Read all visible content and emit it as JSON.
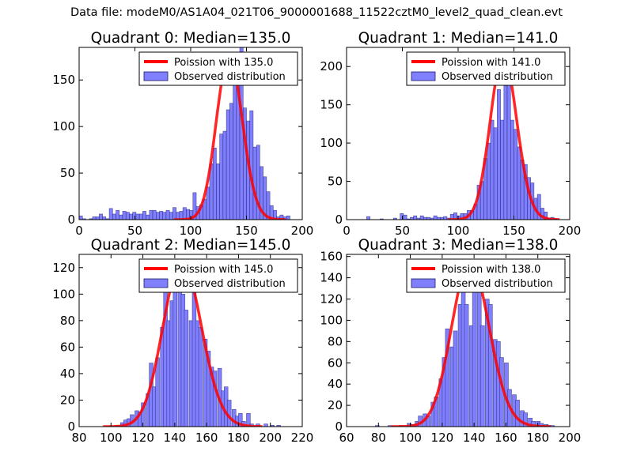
{
  "figure": {
    "suptitle": "Data file: modeM0/AS1A04_021T06_9000001688_11522cztM0_level2_quad_clean.evt"
  },
  "colors": {
    "bar_fill": "#8080ff",
    "bar_edge": "#1a1a66",
    "curve": "#ff0000"
  },
  "chart_data": [
    {
      "type": "bar",
      "title": "Quadrant 0: Median=135.0",
      "xlim": [
        0,
        200
      ],
      "ylim": [
        0,
        185
      ],
      "xticks": [
        0,
        50,
        100,
        150,
        200
      ],
      "yticks": [
        0,
        50,
        100,
        150
      ],
      "legend": {
        "placement": "top-right",
        "curve_label": "Poission with 135.0",
        "bar_label": "Observed distribution"
      },
      "curve": {
        "type": "poisson",
        "mean": 135.0,
        "peak": 176
      },
      "bin_width": 3.0,
      "bins": [
        {
          "x": 0,
          "y": 4
        },
        {
          "x": 3,
          "y": 1
        },
        {
          "x": 9,
          "y": 1
        },
        {
          "x": 12,
          "y": 3
        },
        {
          "x": 15,
          "y": 3
        },
        {
          "x": 18,
          "y": 6
        },
        {
          "x": 21,
          "y": 3
        },
        {
          "x": 24,
          "y": 1
        },
        {
          "x": 27,
          "y": 12
        },
        {
          "x": 30,
          "y": 6
        },
        {
          "x": 33,
          "y": 10
        },
        {
          "x": 36,
          "y": 5
        },
        {
          "x": 39,
          "y": 9
        },
        {
          "x": 42,
          "y": 8
        },
        {
          "x": 45,
          "y": 6
        },
        {
          "x": 48,
          "y": 8
        },
        {
          "x": 51,
          "y": 6
        },
        {
          "x": 54,
          "y": 6
        },
        {
          "x": 57,
          "y": 9
        },
        {
          "x": 60,
          "y": 5
        },
        {
          "x": 63,
          "y": 10
        },
        {
          "x": 66,
          "y": 10
        },
        {
          "x": 69,
          "y": 8
        },
        {
          "x": 72,
          "y": 9
        },
        {
          "x": 75,
          "y": 8
        },
        {
          "x": 78,
          "y": 10
        },
        {
          "x": 81,
          "y": 8
        },
        {
          "x": 84,
          "y": 13
        },
        {
          "x": 87,
          "y": 8
        },
        {
          "x": 90,
          "y": 9
        },
        {
          "x": 93,
          "y": 13
        },
        {
          "x": 96,
          "y": 11
        },
        {
          "x": 99,
          "y": 10
        },
        {
          "x": 102,
          "y": 29
        },
        {
          "x": 105,
          "y": 14
        },
        {
          "x": 108,
          "y": 16
        },
        {
          "x": 111,
          "y": 22
        },
        {
          "x": 114,
          "y": 35
        },
        {
          "x": 117,
          "y": 60
        },
        {
          "x": 120,
          "y": 77
        },
        {
          "x": 123,
          "y": 60
        },
        {
          "x": 126,
          "y": 92
        },
        {
          "x": 129,
          "y": 95
        },
        {
          "x": 132,
          "y": 118
        },
        {
          "x": 135,
          "y": 125
        },
        {
          "x": 138,
          "y": 152
        },
        {
          "x": 141,
          "y": 144
        },
        {
          "x": 144,
          "y": 185
        },
        {
          "x": 147,
          "y": 120
        },
        {
          "x": 150,
          "y": 106
        },
        {
          "x": 153,
          "y": 117
        },
        {
          "x": 156,
          "y": 78
        },
        {
          "x": 159,
          "y": 80
        },
        {
          "x": 162,
          "y": 57
        },
        {
          "x": 165,
          "y": 46
        },
        {
          "x": 168,
          "y": 30
        },
        {
          "x": 171,
          "y": 15
        },
        {
          "x": 174,
          "y": 10
        },
        {
          "x": 177,
          "y": 3
        },
        {
          "x": 180,
          "y": 5
        },
        {
          "x": 183,
          "y": 3
        },
        {
          "x": 186,
          "y": 4
        }
      ]
    },
    {
      "type": "bar",
      "title": "Quadrant 1: Median=141.0",
      "xlim": [
        0,
        200
      ],
      "ylim": [
        0,
        225
      ],
      "xticks": [
        0,
        50,
        100,
        150,
        200
      ],
      "yticks": [
        0,
        50,
        100,
        150,
        200
      ],
      "legend": {
        "placement": "top-right",
        "curve_label": "Poission with 141.0",
        "bar_label": "Observed distribution"
      },
      "curve": {
        "type": "poisson",
        "mean": 141.0,
        "peak": 214
      },
      "bin_width": 3.0,
      "bins": [
        {
          "x": 18,
          "y": 4
        },
        {
          "x": 30,
          "y": 1
        },
        {
          "x": 42,
          "y": 2
        },
        {
          "x": 48,
          "y": 8
        },
        {
          "x": 51,
          "y": 6
        },
        {
          "x": 54,
          "y": 1
        },
        {
          "x": 57,
          "y": 3
        },
        {
          "x": 60,
          "y": 5
        },
        {
          "x": 63,
          "y": 2
        },
        {
          "x": 66,
          "y": 5
        },
        {
          "x": 69,
          "y": 3
        },
        {
          "x": 72,
          "y": 3
        },
        {
          "x": 75,
          "y": 2
        },
        {
          "x": 78,
          "y": 5
        },
        {
          "x": 81,
          "y": 3
        },
        {
          "x": 84,
          "y": 3
        },
        {
          "x": 87,
          "y": 4
        },
        {
          "x": 90,
          "y": 2
        },
        {
          "x": 93,
          "y": 7
        },
        {
          "x": 96,
          "y": 9
        },
        {
          "x": 99,
          "y": 5
        },
        {
          "x": 102,
          "y": 8
        },
        {
          "x": 105,
          "y": 8
        },
        {
          "x": 108,
          "y": 12
        },
        {
          "x": 111,
          "y": 12
        },
        {
          "x": 114,
          "y": 20
        },
        {
          "x": 117,
          "y": 45
        },
        {
          "x": 120,
          "y": 50
        },
        {
          "x": 123,
          "y": 80
        },
        {
          "x": 126,
          "y": 100
        },
        {
          "x": 129,
          "y": 130
        },
        {
          "x": 132,
          "y": 120
        },
        {
          "x": 135,
          "y": 170
        },
        {
          "x": 138,
          "y": 130
        },
        {
          "x": 141,
          "y": 175
        },
        {
          "x": 144,
          "y": 205
        },
        {
          "x": 147,
          "y": 130
        },
        {
          "x": 150,
          "y": 118
        },
        {
          "x": 153,
          "y": 95
        },
        {
          "x": 156,
          "y": 78
        },
        {
          "x": 159,
          "y": 72
        },
        {
          "x": 162,
          "y": 55
        },
        {
          "x": 165,
          "y": 48
        },
        {
          "x": 168,
          "y": 28
        },
        {
          "x": 171,
          "y": 33
        },
        {
          "x": 174,
          "y": 15
        },
        {
          "x": 177,
          "y": 10
        },
        {
          "x": 180,
          "y": 2
        },
        {
          "x": 183,
          "y": 3
        },
        {
          "x": 186,
          "y": 1
        }
      ]
    },
    {
      "type": "bar",
      "title": "Quadrant 2: Median=145.0",
      "xlim": [
        80,
        220
      ],
      "ylim": [
        0,
        130
      ],
      "xticks": [
        80,
        100,
        120,
        140,
        160,
        180,
        200,
        220
      ],
      "yticks": [
        0,
        20,
        40,
        60,
        80,
        100,
        120
      ],
      "legend": {
        "placement": "top-right",
        "curve_label": "Poission with 145.0",
        "bar_label": "Observed distribution"
      },
      "curve": {
        "type": "poisson",
        "mean": 145.0,
        "peak": 125
      },
      "bin_width": 2.4,
      "bins": [
        {
          "x": 103,
          "y": 1
        },
        {
          "x": 106,
          "y": 3
        },
        {
          "x": 108,
          "y": 5
        },
        {
          "x": 110,
          "y": 6
        },
        {
          "x": 112,
          "y": 9
        },
        {
          "x": 115,
          "y": 12
        },
        {
          "x": 117,
          "y": 11
        },
        {
          "x": 119,
          "y": 18
        },
        {
          "x": 122,
          "y": 25
        },
        {
          "x": 124,
          "y": 48
        },
        {
          "x": 126,
          "y": 30
        },
        {
          "x": 128,
          "y": 52
        },
        {
          "x": 131,
          "y": 75
        },
        {
          "x": 133,
          "y": 125
        },
        {
          "x": 135,
          "y": 80
        },
        {
          "x": 137,
          "y": 95
        },
        {
          "x": 139,
          "y": 118
        },
        {
          "x": 142,
          "y": 113
        },
        {
          "x": 144,
          "y": 100
        },
        {
          "x": 146,
          "y": 88
        },
        {
          "x": 149,
          "y": 80
        },
        {
          "x": 151,
          "y": 105
        },
        {
          "x": 153,
          "y": 80
        },
        {
          "x": 155,
          "y": 75
        },
        {
          "x": 158,
          "y": 66
        },
        {
          "x": 160,
          "y": 57
        },
        {
          "x": 162,
          "y": 45
        },
        {
          "x": 164,
          "y": 42
        },
        {
          "x": 167,
          "y": 44
        },
        {
          "x": 169,
          "y": 27
        },
        {
          "x": 171,
          "y": 30
        },
        {
          "x": 173,
          "y": 20
        },
        {
          "x": 176,
          "y": 13
        },
        {
          "x": 178,
          "y": 8
        },
        {
          "x": 180,
          "y": 10
        },
        {
          "x": 182,
          "y": 4
        },
        {
          "x": 185,
          "y": 10
        },
        {
          "x": 187,
          "y": 2
        },
        {
          "x": 191,
          "y": 2
        },
        {
          "x": 196,
          "y": 2
        },
        {
          "x": 200,
          "y": 1
        },
        {
          "x": 204,
          "y": 1
        }
      ]
    },
    {
      "type": "bar",
      "title": "Quadrant 3: Median=138.0",
      "xlim": [
        60,
        200
      ],
      "ylim": [
        0,
        162
      ],
      "xticks": [
        60,
        80,
        100,
        120,
        140,
        160,
        180,
        200
      ],
      "yticks": [
        0,
        20,
        40,
        60,
        80,
        100,
        120,
        140,
        160
      ],
      "legend": {
        "placement": "top-right",
        "curve_label": "Poission with 138.0",
        "bar_label": "Observed distribution"
      },
      "curve": {
        "type": "poisson",
        "mean": 138.0,
        "peak": 155
      },
      "bin_width": 2.5,
      "bins": [
        {
          "x": 78,
          "y": 1
        },
        {
          "x": 86,
          "y": 1
        },
        {
          "x": 93,
          "y": 1
        },
        {
          "x": 98,
          "y": 3
        },
        {
          "x": 100,
          "y": 2
        },
        {
          "x": 103,
          "y": 5
        },
        {
          "x": 105,
          "y": 10
        },
        {
          "x": 108,
          "y": 12
        },
        {
          "x": 110,
          "y": 10
        },
        {
          "x": 113,
          "y": 23
        },
        {
          "x": 115,
          "y": 28
        },
        {
          "x": 118,
          "y": 45
        },
        {
          "x": 120,
          "y": 65
        },
        {
          "x": 122,
          "y": 92
        },
        {
          "x": 125,
          "y": 75
        },
        {
          "x": 127,
          "y": 90
        },
        {
          "x": 130,
          "y": 115
        },
        {
          "x": 132,
          "y": 145
        },
        {
          "x": 134,
          "y": 115
        },
        {
          "x": 137,
          "y": 95
        },
        {
          "x": 139,
          "y": 148
        },
        {
          "x": 142,
          "y": 150
        },
        {
          "x": 144,
          "y": 95
        },
        {
          "x": 147,
          "y": 120
        },
        {
          "x": 149,
          "y": 115
        },
        {
          "x": 152,
          "y": 82
        },
        {
          "x": 154,
          "y": 80
        },
        {
          "x": 156,
          "y": 65
        },
        {
          "x": 159,
          "y": 60
        },
        {
          "x": 161,
          "y": 35
        },
        {
          "x": 164,
          "y": 30
        },
        {
          "x": 166,
          "y": 25
        },
        {
          "x": 169,
          "y": 15
        },
        {
          "x": 171,
          "y": 13
        },
        {
          "x": 174,
          "y": 8
        },
        {
          "x": 176,
          "y": 5
        },
        {
          "x": 179,
          "y": 5
        },
        {
          "x": 181,
          "y": 3
        },
        {
          "x": 184,
          "y": 2
        },
        {
          "x": 186,
          "y": 1
        },
        {
          "x": 188,
          "y": 1
        }
      ]
    }
  ]
}
